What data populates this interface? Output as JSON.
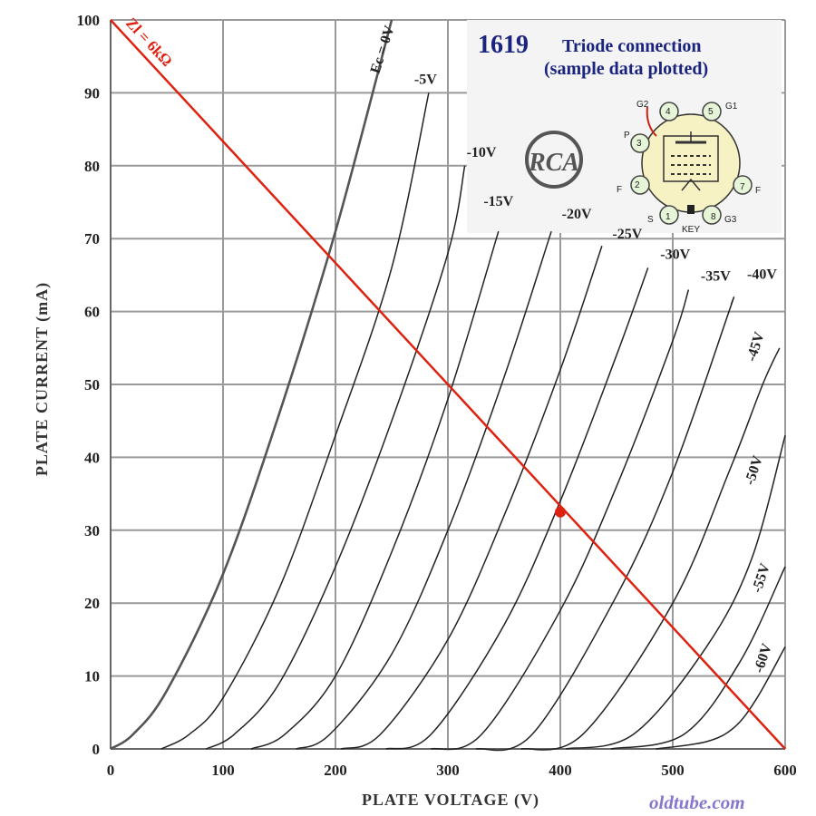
{
  "chart_data": {
    "type": "line",
    "title": "1619",
    "subtitle_line1": "Triode connection",
    "subtitle_line2": "(sample data plotted)",
    "xlabel": "PLATE  VOLTAGE  (V)",
    "ylabel": "PLATE  CURRENT  (mA)",
    "xlim": [
      0,
      600
    ],
    "ylim": [
      0,
      100
    ],
    "x_ticks": [
      "0",
      "100",
      "200",
      "300",
      "400",
      "500",
      "600"
    ],
    "y_ticks": [
      "0",
      "10",
      "20",
      "30",
      "40",
      "50",
      "60",
      "70",
      "80",
      "90",
      "100"
    ],
    "grid": true,
    "series": [
      {
        "name": "Ec = 0V",
        "points": [
          [
            0,
            0
          ],
          [
            20,
            2
          ],
          [
            50,
            8
          ],
          [
            100,
            24
          ],
          [
            150,
            46
          ],
          [
            200,
            71
          ],
          [
            250,
            100
          ]
        ]
      },
      {
        "name": "-5V",
        "points": [
          [
            45,
            0
          ],
          [
            70,
            2
          ],
          [
            100,
            7
          ],
          [
            150,
            22
          ],
          [
            200,
            43
          ],
          [
            250,
            66
          ],
          [
            283,
            90
          ]
        ]
      },
      {
        "name": "-10V",
        "points": [
          [
            85,
            0
          ],
          [
            110,
            2
          ],
          [
            150,
            9
          ],
          [
            200,
            25
          ],
          [
            250,
            45
          ],
          [
            300,
            68
          ],
          [
            315,
            80
          ]
        ]
      },
      {
        "name": "-15V",
        "points": [
          [
            125,
            0
          ],
          [
            155,
            2
          ],
          [
            200,
            10
          ],
          [
            250,
            27
          ],
          [
            300,
            48
          ],
          [
            345,
            71
          ]
        ]
      },
      {
        "name": "-20V",
        "points": [
          [
            165,
            0
          ],
          [
            195,
            2
          ],
          [
            250,
            13
          ],
          [
            300,
            30
          ],
          [
            350,
            51
          ],
          [
            392,
            71
          ]
        ]
      },
      {
        "name": "-25V",
        "points": [
          [
            205,
            0
          ],
          [
            240,
            2
          ],
          [
            300,
            15
          ],
          [
            350,
            32
          ],
          [
            400,
            52
          ],
          [
            437,
            69
          ]
        ]
      },
      {
        "name": "-30V",
        "points": [
          [
            245,
            0
          ],
          [
            285,
            2
          ],
          [
            350,
            17
          ],
          [
            400,
            34
          ],
          [
            450,
            54
          ],
          [
            478,
            66
          ]
        ]
      },
      {
        "name": "-35V",
        "points": [
          [
            285,
            0
          ],
          [
            330,
            2
          ],
          [
            400,
            19
          ],
          [
            450,
            36
          ],
          [
            500,
            56
          ],
          [
            514,
            63
          ]
        ]
      },
      {
        "name": "-40V",
        "points": [
          [
            325,
            0
          ],
          [
            375,
            2
          ],
          [
            450,
            21
          ],
          [
            500,
            38
          ],
          [
            550,
            60
          ],
          [
            552,
            61
          ]
        ]
      },
      {
        "name": "-45V",
        "points": [
          [
            365,
            0
          ],
          [
            420,
            2
          ],
          [
            500,
            20
          ],
          [
            550,
            38
          ],
          [
            580,
            50
          ],
          [
            595,
            55
          ]
        ]
      },
      {
        "name": "-50V",
        "points": [
          [
            405,
            0
          ],
          [
            465,
            2
          ],
          [
            530,
            14
          ],
          [
            570,
            26
          ],
          [
            600,
            43
          ]
        ]
      },
      {
        "name": "-55V",
        "points": [
          [
            445,
            0
          ],
          [
            510,
            2
          ],
          [
            560,
            12
          ],
          [
            600,
            25
          ]
        ]
      },
      {
        "name": "-60V",
        "points": [
          [
            485,
            0
          ],
          [
            530,
            1
          ],
          [
            555,
            3
          ],
          [
            575,
            7
          ],
          [
            600,
            14
          ]
        ]
      }
    ],
    "load_line": {
      "label": "Zl = 6kΩ",
      "color": "#dd2211",
      "start": [
        0,
        100
      ],
      "end": [
        600,
        0
      ],
      "operating_point": [
        400,
        32.5
      ]
    },
    "colors": {
      "curves": "#222222",
      "grid": "#9a9a9a",
      "load_line": "#dd2211",
      "title": "#1a237e",
      "watermark": "#8877cc",
      "inset_bg": "#f4f4f4"
    }
  },
  "inset": {
    "brand_logo_text": "RCA",
    "pin_labels": [
      "G2",
      "4",
      "5",
      "G1",
      "P",
      "3",
      "F",
      "2",
      "7",
      "F",
      "S",
      "1",
      "8",
      "G3",
      "KEY"
    ],
    "icon": "tube-pinout-diagram"
  },
  "watermark": "oldtube.com"
}
